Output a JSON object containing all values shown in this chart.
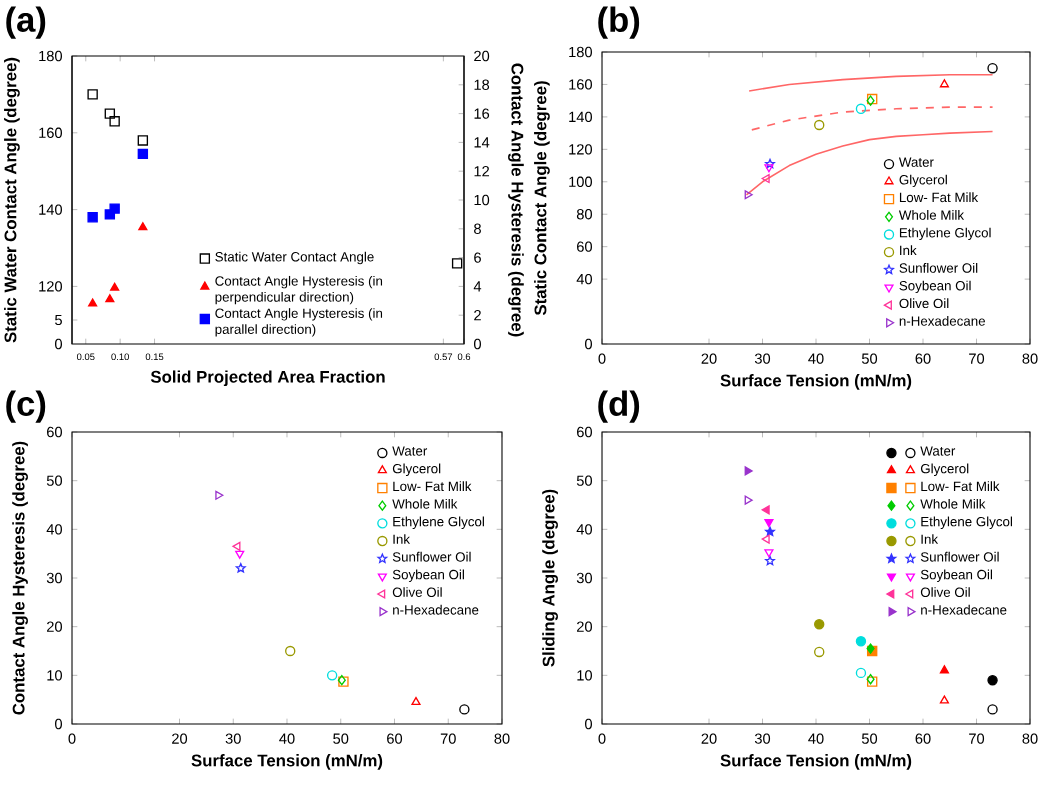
{
  "chart_data": [
    {
      "type": "scatter",
      "title": "(a)",
      "xlabel": "Solid Projected Area Fraction",
      "ylabel": "Static Water Contact Angle (degree)",
      "y2label": "Contact Angle Hysteresis (degree)",
      "xlim": [
        0.03,
        0.6
      ],
      "xticks": [
        0.05,
        {
          "value": 0.1,
          "label": "0.10"
        },
        0.15,
        0.57,
        0.6
      ],
      "ylim": [
        105,
        180
      ],
      "yticks": [
        120,
        140,
        160,
        180
      ],
      "y3lim": [
        0,
        60
      ],
      "y3ticks": [
        0,
        5
      ],
      "y2lim": [
        0,
        20
      ],
      "y2ticks": [
        0,
        2,
        4,
        6,
        8,
        10,
        12,
        14,
        16,
        18,
        20
      ],
      "legend": "bottom right",
      "series": [
        {
          "name": "Static Water Contact Angle",
          "color": "#000000",
          "marker": "square",
          "x": [
            0.06,
            0.085,
            0.092,
            0.133,
            0.59
          ],
          "values": [
            170,
            165,
            163,
            158,
            126
          ]
        },
        {
          "name": "Contact Angle Hysteresis (in perpendicular direction)",
          "color": "#ff0000",
          "marker": "triangle",
          "axis": "y2",
          "x": [
            0.06,
            0.085,
            0.092,
            0.133
          ],
          "values": [
            2.8,
            3.1,
            3.9,
            8.1
          ]
        },
        {
          "name": "Contact Angle Hysteresis (in parallel direction)",
          "color": "#0000ff",
          "marker": "square",
          "axis": "y2",
          "x": [
            0.06,
            0.085,
            0.092,
            0.133
          ],
          "values": [
            8.8,
            9.0,
            9.4,
            13.2
          ]
        }
      ]
    },
    {
      "type": "scatter",
      "title": "(b)",
      "xlabel": "Surface Tension (mN/m)",
      "ylabel": "Static Contact Angle (degree)",
      "xlim": [
        0,
        80
      ],
      "xticks": [
        0,
        20,
        30,
        40,
        50,
        60,
        70,
        80
      ],
      "ylim": [
        0,
        180
      ],
      "yticks": [
        0,
        40,
        60,
        80,
        100,
        120,
        140,
        160,
        180
      ],
      "legend": "bottom right",
      "series": [
        {
          "type": "line",
          "color": "#ff6666",
          "line_style": "solid",
          "x": [
            27.5,
            35,
            45,
            55,
            65,
            73
          ],
          "values": [
            156,
            160,
            163,
            165,
            166,
            166
          ]
        },
        {
          "type": "line",
          "color": "#ff6666",
          "line_style": "dashed",
          "x": [
            28,
            35,
            45,
            55,
            65,
            73
          ],
          "values": [
            132,
            138,
            143,
            145,
            146,
            146
          ]
        },
        {
          "type": "line",
          "color": "#ff6666",
          "line_style": "solid",
          "x": [
            27,
            30,
            35,
            40,
            45,
            50,
            55,
            60,
            65,
            73
          ],
          "values": [
            92,
            100,
            110,
            117,
            122,
            126,
            128,
            129,
            130,
            131
          ]
        },
        {
          "name": "Water",
          "color": "#000000",
          "marker": "circle",
          "x": [
            73
          ],
          "values": [
            170
          ]
        },
        {
          "name": "Glycerol",
          "color": "#ff0000",
          "marker": "triangle",
          "x": [
            64
          ],
          "values": [
            160
          ]
        },
        {
          "name": "Low- Fat Milk",
          "color": "#ff8000",
          "marker": "square",
          "x": [
            50.5
          ],
          "values": [
            151
          ]
        },
        {
          "name": "Whole Milk",
          "color": "#00cc00",
          "marker": "diamond",
          "x": [
            50.2
          ],
          "values": [
            150
          ]
        },
        {
          "name": "Ethylene Glycol",
          "color": "#00dddd",
          "marker": "circle",
          "x": [
            48.4
          ],
          "values": [
            145
          ]
        },
        {
          "name": "Ink",
          "color": "#999900",
          "marker": "circle",
          "x": [
            40.6
          ],
          "values": [
            135
          ]
        },
        {
          "name": "Sunflower Oil",
          "color": "#3333ff",
          "marker": "star",
          "x": [
            31.4
          ],
          "values": [
            111
          ]
        },
        {
          "name": "Soybean Oil",
          "color": "#ff00ff",
          "marker": "triangle-down",
          "x": [
            31.2
          ],
          "values": [
            109
          ]
        },
        {
          "name": "Olive Oil",
          "color": "#ff3399",
          "marker": "triangle-left",
          "x": [
            30.8
          ],
          "values": [
            102
          ]
        },
        {
          "name": "n-Hexadecane",
          "color": "#9933cc",
          "marker": "triangle-right",
          "x": [
            27.2
          ],
          "values": [
            92
          ]
        }
      ]
    },
    {
      "type": "scatter",
      "title": "(c)",
      "xlabel": "Surface Tension (mN/m)",
      "ylabel": "Contact Angle Hysteresis (degree)",
      "xlim": [
        0,
        80
      ],
      "xticks": [
        0,
        20,
        30,
        40,
        50,
        60,
        70,
        80
      ],
      "ylim": [
        0,
        60
      ],
      "yticks": [
        0,
        10,
        20,
        30,
        40,
        50,
        60
      ],
      "legend": "top right",
      "series": [
        {
          "name": "Water",
          "color": "#000000",
          "marker": "circle",
          "x": [
            73
          ],
          "values": [
            3
          ]
        },
        {
          "name": "Glycerol",
          "color": "#ff0000",
          "marker": "triangle",
          "x": [
            64
          ],
          "values": [
            4.5
          ]
        },
        {
          "name": "Low- Fat Milk",
          "color": "#ff8000",
          "marker": "square",
          "x": [
            50.5
          ],
          "values": [
            8.7
          ]
        },
        {
          "name": "Whole Milk",
          "color": "#00cc00",
          "marker": "diamond",
          "x": [
            50.2
          ],
          "values": [
            9
          ]
        },
        {
          "name": "Ethylene Glycol",
          "color": "#00dddd",
          "marker": "circle",
          "x": [
            48.4
          ],
          "values": [
            10
          ]
        },
        {
          "name": "Ink",
          "color": "#999900",
          "marker": "circle",
          "x": [
            40.6
          ],
          "values": [
            15
          ]
        },
        {
          "name": "Sunflower Oil",
          "color": "#3333ff",
          "marker": "star",
          "x": [
            31.4
          ],
          "values": [
            32
          ]
        },
        {
          "name": "Soybean Oil",
          "color": "#ff00ff",
          "marker": "triangle-down",
          "x": [
            31.2
          ],
          "values": [
            35
          ]
        },
        {
          "name": "Olive Oil",
          "color": "#ff3399",
          "marker": "triangle-left",
          "x": [
            30.8
          ],
          "values": [
            36.5
          ]
        },
        {
          "name": "n-Hexadecane",
          "color": "#9933cc",
          "marker": "triangle-right",
          "x": [
            27.2
          ],
          "values": [
            47
          ]
        }
      ]
    },
    {
      "type": "scatter",
      "title": "(d)",
      "xlabel": "Surface Tension (mN/m)",
      "ylabel": "Sliding Angle (degree)",
      "xlim": [
        0,
        80
      ],
      "xticks": [
        0,
        20,
        30,
        40,
        50,
        60,
        70,
        80
      ],
      "ylim": [
        0,
        60
      ],
      "yticks": [
        0,
        10,
        20,
        30,
        40,
        50,
        60
      ],
      "legend": "top right",
      "series": [
        {
          "name": "Water",
          "color": "#000000",
          "marker": "circle",
          "x": [
            73
          ],
          "values": [
            9
          ]
        },
        {
          "color": "#000000",
          "marker": "circle",
          "x": [
            73
          ],
          "values": [
            3
          ]
        },
        {
          "name": "Glycerol",
          "color": "#ff0000",
          "marker": "triangle",
          "x": [
            64
          ],
          "values": [
            11
          ]
        },
        {
          "color": "#ff0000",
          "marker": "triangle",
          "x": [
            64
          ],
          "values": [
            4.8
          ]
        },
        {
          "name": "Low- Fat Milk",
          "color": "#ff8000",
          "marker": "square",
          "x": [
            50.5
          ],
          "values": [
            15
          ]
        },
        {
          "color": "#ff8000",
          "marker": "square",
          "x": [
            50.5
          ],
          "values": [
            8.7
          ]
        },
        {
          "name": "Whole Milk",
          "color": "#00cc00",
          "marker": "diamond",
          "x": [
            50.2
          ],
          "values": [
            15.5
          ]
        },
        {
          "color": "#00cc00",
          "marker": "diamond",
          "x": [
            50.2
          ],
          "values": [
            9.2
          ]
        },
        {
          "name": "Ethylene Glycol",
          "color": "#00dddd",
          "marker": "circle",
          "x": [
            48.4
          ],
          "values": [
            17
          ]
        },
        {
          "color": "#00dddd",
          "marker": "circle",
          "x": [
            48.4
          ],
          "values": [
            10.5
          ]
        },
        {
          "name": "Ink",
          "color": "#999900",
          "marker": "circle",
          "x": [
            40.6
          ],
          "values": [
            20.5
          ]
        },
        {
          "color": "#999900",
          "marker": "circle",
          "x": [
            40.6
          ],
          "values": [
            14.8
          ]
        },
        {
          "name": "Sunflower Oil",
          "color": "#3333ff",
          "marker": "star",
          "x": [
            31.4
          ],
          "values": [
            39.5
          ]
        },
        {
          "color": "#3333ff",
          "marker": "star",
          "x": [
            31.4
          ],
          "values": [
            33.5
          ]
        },
        {
          "name": "Soybean Oil",
          "color": "#ff00ff",
          "marker": "triangle-down",
          "x": [
            31.2
          ],
          "values": [
            41.5
          ]
        },
        {
          "color": "#ff00ff",
          "marker": "triangle-down",
          "x": [
            31.2
          ],
          "values": [
            35.3
          ]
        },
        {
          "name": "Olive Oil",
          "color": "#ff3399",
          "marker": "triangle-left",
          "x": [
            30.8
          ],
          "values": [
            44
          ]
        },
        {
          "color": "#ff3399",
          "marker": "triangle-left",
          "x": [
            30.8
          ],
          "values": [
            38
          ]
        },
        {
          "name": "n-Hexadecane",
          "color": "#9933cc",
          "marker": "triangle-right",
          "x": [
            27.2
          ],
          "values": [
            52
          ]
        },
        {
          "color": "#9933cc",
          "marker": "triangle-right",
          "x": [
            27.2
          ],
          "values": [
            46
          ]
        }
      ]
    }
  ]
}
